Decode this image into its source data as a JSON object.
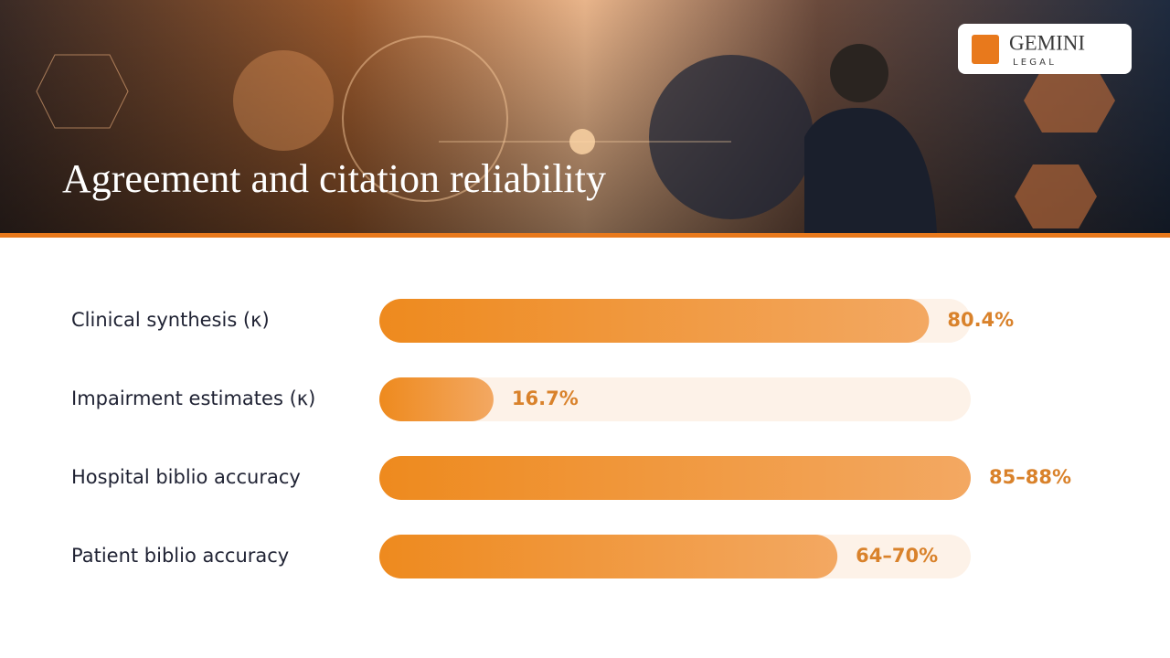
{
  "logo": {
    "name": "GEMINI",
    "tagline": "L E G A L"
  },
  "chart_data": {
    "type": "bar",
    "orientation": "horizontal",
    "title": "Agreement and citation reliability",
    "categories": [
      "Clinical synthesis (κ)",
      "Impairment estimates (κ)",
      "Hospital biblio accuracy",
      "Patient biblio accuracy"
    ],
    "values": [
      80.4,
      16.7,
      86.5,
      67
    ],
    "value_labels": [
      "80.4%",
      "16.7%",
      "85–88%",
      "64–70%"
    ],
    "xlim": [
      0,
      86.5
    ],
    "color": "#ee8a1e",
    "color_end": "#f3a862",
    "track_color": "#fdf2e8",
    "label_color": "#d9822b"
  }
}
